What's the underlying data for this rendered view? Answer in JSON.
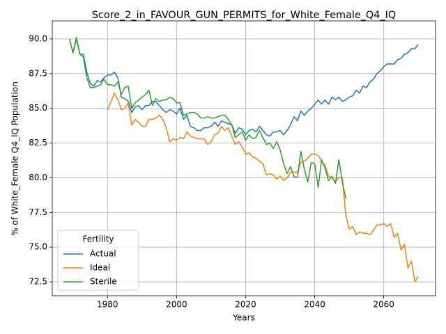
{
  "chart_data": {
    "type": "line",
    "title": "Score_2_in_FAVOUR_GUN_PERMITS_for_White_Female_Q4_IQ",
    "x_label": "Years",
    "y_label": "% of White_Female Q4_IQ Population",
    "legend_title": "Fertility",
    "legend_position": "lower left",
    "grid": true,
    "xlim": [
      1964,
      2075
    ],
    "ylim": [
      71.5,
      91.3
    ],
    "xticks": [
      1980,
      2000,
      2020,
      2040,
      2060
    ],
    "yticks": [
      72.5,
      {
        "value": 75,
        "label": "75.0"
      },
      77.5,
      {
        "value": 80,
        "label": "80.0"
      },
      82.5,
      {
        "value": 85,
        "label": "85.0"
      },
      87.5,
      {
        "value": 90,
        "label": "90.0"
      }
    ],
    "x": [
      1969,
      1970,
      1971,
      1972,
      1973,
      1974,
      1975,
      1976,
      1977,
      1978,
      1979,
      1980,
      1981,
      1982,
      1983,
      1984,
      1985,
      1986,
      1987,
      1988,
      1989,
      1990,
      1991,
      1992,
      1993,
      1994,
      1995,
      1996,
      1997,
      1998,
      1999,
      2000,
      2001,
      2002,
      2003,
      2004,
      2005,
      2006,
      2007,
      2008,
      2009,
      2010,
      2011,
      2012,
      2013,
      2014,
      2015,
      2016,
      2017,
      2018,
      2019,
      2020,
      2021,
      2022,
      2023,
      2024,
      2025,
      2026,
      2027,
      2028,
      2029,
      2030,
      2031,
      2032,
      2033,
      2034,
      2035,
      2036,
      2037,
      2038,
      2039,
      2040,
      2041,
      2042,
      2043,
      2044,
      2045,
      2046,
      2047,
      2048,
      2049,
      2050,
      2051,
      2052,
      2053,
      2054,
      2055,
      2056,
      2057,
      2058,
      2059,
      2060,
      2061,
      2062,
      2063,
      2064,
      2065,
      2066,
      2067,
      2068,
      2069,
      2070
    ],
    "series": [
      {
        "name": "Actual",
        "color": "#1f77b4",
        "values": [
          90.0,
          89.0,
          90.0,
          88.9,
          88.9,
          87.6,
          86.8,
          86.6,
          87.0,
          86.9,
          87.2,
          87.4,
          87.4,
          87.6,
          87.2,
          85.8,
          85.7,
          85.5,
          84.7,
          85.1,
          85.2,
          84.9,
          85.2,
          85.2,
          85.5,
          85.5,
          85.2,
          84.9,
          84.7,
          84.9,
          84.8,
          84.6,
          85.0,
          84.2,
          84.5,
          83.7,
          83.6,
          83.4,
          83.4,
          83.6,
          83.6,
          83.7,
          84.0,
          83.7,
          84.1,
          84.0,
          83.9,
          83.8,
          83.2,
          83.6,
          83.5,
          83.1,
          83.4,
          83.5,
          83.3,
          83.7,
          83.4,
          83.1,
          83.0,
          83.3,
          83.3,
          83.4,
          83.1,
          83.4,
          83.8,
          84.4,
          84.1,
          84.8,
          84.5,
          84.8,
          85.0,
          85.3,
          85.6,
          85.3,
          85.6,
          85.3,
          85.8,
          85.6,
          85.8,
          85.5,
          85.6,
          85.8,
          85.9,
          86.3,
          86.1,
          86.6,
          86.5,
          86.9,
          87.1,
          87.5,
          87.7,
          88.0,
          88.2,
          88.2,
          88.2,
          88.5,
          88.6,
          88.9,
          89.0,
          89.3,
          89.3,
          89.6
        ]
      },
      {
        "name": "Ideal",
        "color": "#ff7f0e",
        "values": [
          null,
          null,
          null,
          null,
          null,
          null,
          null,
          null,
          null,
          null,
          null,
          84.9,
          85.5,
          86.1,
          85.6,
          84.9,
          85.0,
          85.4,
          83.8,
          84.2,
          84.0,
          83.7,
          83.7,
          84.2,
          84.2,
          84.3,
          84.5,
          84.2,
          83.6,
          82.6,
          82.8,
          82.7,
          82.9,
          82.8,
          83.3,
          83.0,
          82.9,
          82.8,
          82.8,
          82.8,
          82.4,
          82.6,
          83.1,
          83.2,
          83.7,
          83.4,
          83.6,
          83.0,
          82.4,
          82.6,
          82.2,
          81.7,
          81.8,
          81.5,
          81.4,
          81.2,
          81.0,
          80.2,
          80.3,
          80.2,
          79.9,
          80.1,
          79.8,
          80.0,
          80.4,
          80.4,
          80.4,
          81.1,
          81.2,
          81.4,
          81.7,
          81.7,
          81.6,
          81.2,
          80.9,
          80.1,
          80.0,
          79.7,
          80.0,
          80.0,
          77.3,
          76.3,
          76.5,
          75.9,
          76.1,
          76.0,
          76.0,
          75.9,
          76.2,
          76.6,
          76.6,
          76.7,
          76.5,
          76.7,
          75.7,
          76.0,
          74.8,
          75.2,
          73.5,
          74.0,
          72.5,
          72.9
        ]
      },
      {
        "name": "Sterile",
        "color": "#2ca02c",
        "values": [
          90.0,
          89.0,
          90.1,
          88.9,
          88.7,
          87.2,
          86.5,
          86.5,
          86.6,
          86.7,
          87.1,
          86.7,
          86.7,
          86.6,
          86.9,
          86.0,
          86.5,
          86.6,
          85.0,
          85.4,
          85.6,
          85.8,
          86.0,
          86.3,
          85.2,
          85.7,
          85.5,
          85.6,
          85.6,
          85.8,
          85.7,
          85.4,
          85.4,
          84.5,
          84.6,
          84.7,
          84.7,
          84.6,
          84.3,
          84.3,
          84.4,
          84.3,
          84.3,
          84.4,
          84.5,
          84.5,
          84.2,
          83.8,
          82.9,
          83.1,
          83.3,
          82.7,
          83.1,
          82.8,
          82.9,
          83.4,
          82.9,
          82.4,
          82.5,
          82.1,
          82.6,
          82.0,
          81.0,
          80.3,
          80.8,
          80.1,
          80.0,
          81.9,
          80.6,
          79.7,
          81.1,
          81.0,
          79.3,
          81.3,
          80.7,
          79.8,
          80.1,
          79.6,
          81.3,
          79.7,
          78.5,
          null,
          null,
          null,
          null,
          null,
          null,
          null,
          null,
          null,
          null,
          null,
          null,
          null,
          null,
          null,
          null,
          null,
          null,
          null,
          null,
          null
        ]
      }
    ]
  }
}
